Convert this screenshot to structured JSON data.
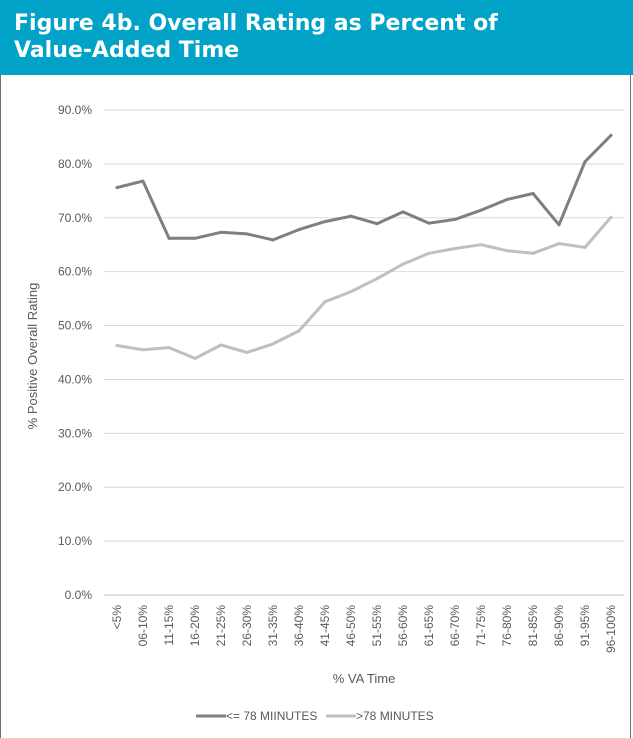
{
  "figure": {
    "title_line1": "Figure 4b. Overall Rating as Percent of",
    "title_line2": "Value-Added Time",
    "header_color": "#00a3c7"
  },
  "chart_data": {
    "type": "line",
    "title": "",
    "xlabel": "% VA Time",
    "ylabel": "% Positive Overall Rating",
    "ylim": [
      0,
      90
    ],
    "ytick_labels": [
      "0.0%",
      "10.0%",
      "20.0%",
      "30.0%",
      "40.0%",
      "50.0%",
      "60.0%",
      "70.0%",
      "80.0%",
      "90.0%"
    ],
    "grid": true,
    "legend_position": "bottom",
    "categories": [
      "<5%",
      "06-10%",
      "11-15%",
      "16-20%",
      "21-25%",
      "26-30%",
      "31-35%",
      "36-40%",
      "41-45%",
      "46-50%",
      "51-55%",
      "56-60%",
      "61-65%",
      "66-70%",
      "71-75%",
      "76-80%",
      "81-85%",
      "86-90%",
      "91-95%",
      "96-100%"
    ],
    "series": [
      {
        "name": "<= 78 MIINUTES",
        "color": "#7f7f7f",
        "values": [
          75.6,
          76.8,
          66.2,
          66.2,
          67.3,
          67.0,
          65.9,
          67.8,
          69.3,
          70.3,
          68.9,
          71.1,
          69.0,
          69.7,
          71.4,
          73.4,
          74.5,
          68.7,
          80.4,
          85.3
        ]
      },
      {
        "name": ">78 MINUTES",
        "color": "#bfbfbf",
        "values": [
          46.3,
          45.5,
          45.9,
          43.9,
          46.4,
          45.0,
          46.6,
          49.0,
          54.4,
          56.3,
          58.7,
          61.4,
          63.4,
          64.3,
          65.0,
          63.9,
          63.4,
          65.2,
          64.5,
          70.1
        ]
      }
    ]
  }
}
